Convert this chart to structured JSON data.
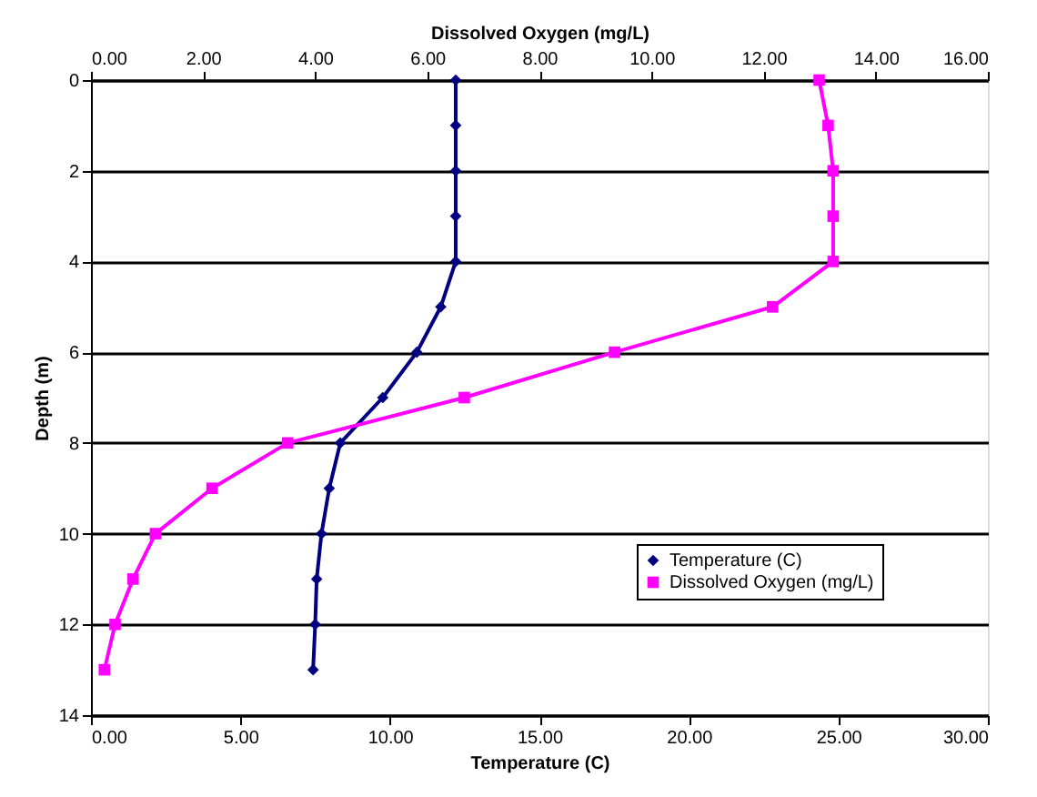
{
  "chart_data": {
    "type": "line",
    "xlabel": "Temperature (C)",
    "x2label": "Dissolved Oxygen (mg/L)",
    "ylabel": "Depth (m)",
    "xlim": [
      0,
      30
    ],
    "xticks": [
      {
        "value": 0,
        "label": "0.00"
      },
      {
        "value": 5,
        "label": "5.00"
      },
      {
        "value": 10,
        "label": "10.00"
      },
      {
        "value": 15,
        "label": "15.00"
      },
      {
        "value": 20,
        "label": "20.00"
      },
      {
        "value": 25,
        "label": "25.00"
      },
      {
        "value": 30,
        "label": "30.00"
      }
    ],
    "x2lim": [
      0,
      16
    ],
    "x2ticks": [
      {
        "value": 0,
        "label": "0.00"
      },
      {
        "value": 2,
        "label": "2.00"
      },
      {
        "value": 4,
        "label": "4.00"
      },
      {
        "value": 6,
        "label": "6.00"
      },
      {
        "value": 8,
        "label": "8.00"
      },
      {
        "value": 10,
        "label": "10.00"
      },
      {
        "value": 12,
        "label": "12.00"
      },
      {
        "value": 14,
        "label": "14.00"
      },
      {
        "value": 16,
        "label": "16.00"
      }
    ],
    "ylim": [
      14,
      0
    ],
    "yticks": [
      0,
      2,
      4,
      6,
      8,
      10,
      12,
      14
    ],
    "grid": "y",
    "legend": "right",
    "series": [
      {
        "name": "Temperature (C)",
        "color": "#000080",
        "marker": "diamond",
        "x": [
          12.2,
          12.2,
          12.2,
          12.2,
          12.2,
          11.7,
          10.9,
          9.76,
          8.34,
          7.97,
          7.71,
          7.55,
          7.5,
          7.43
        ],
        "values": [
          0,
          1,
          2,
          3,
          4,
          5,
          6,
          7,
          8,
          9,
          10,
          11,
          12,
          13
        ]
      },
      {
        "name": "Dissolved Oxygen (mg/L)",
        "color": "#ff00ff",
        "marker": "square",
        "axis": "x2",
        "x": [
          12.99,
          13.15,
          13.24,
          13.24,
          13.24,
          12.16,
          9.34,
          6.66,
          3.51,
          2.16,
          1.15,
          0.75,
          0.43,
          0.24
        ],
        "values": [
          0,
          1,
          2,
          3,
          4,
          5,
          6,
          7,
          8,
          9,
          10,
          11,
          12,
          13
        ]
      }
    ]
  }
}
